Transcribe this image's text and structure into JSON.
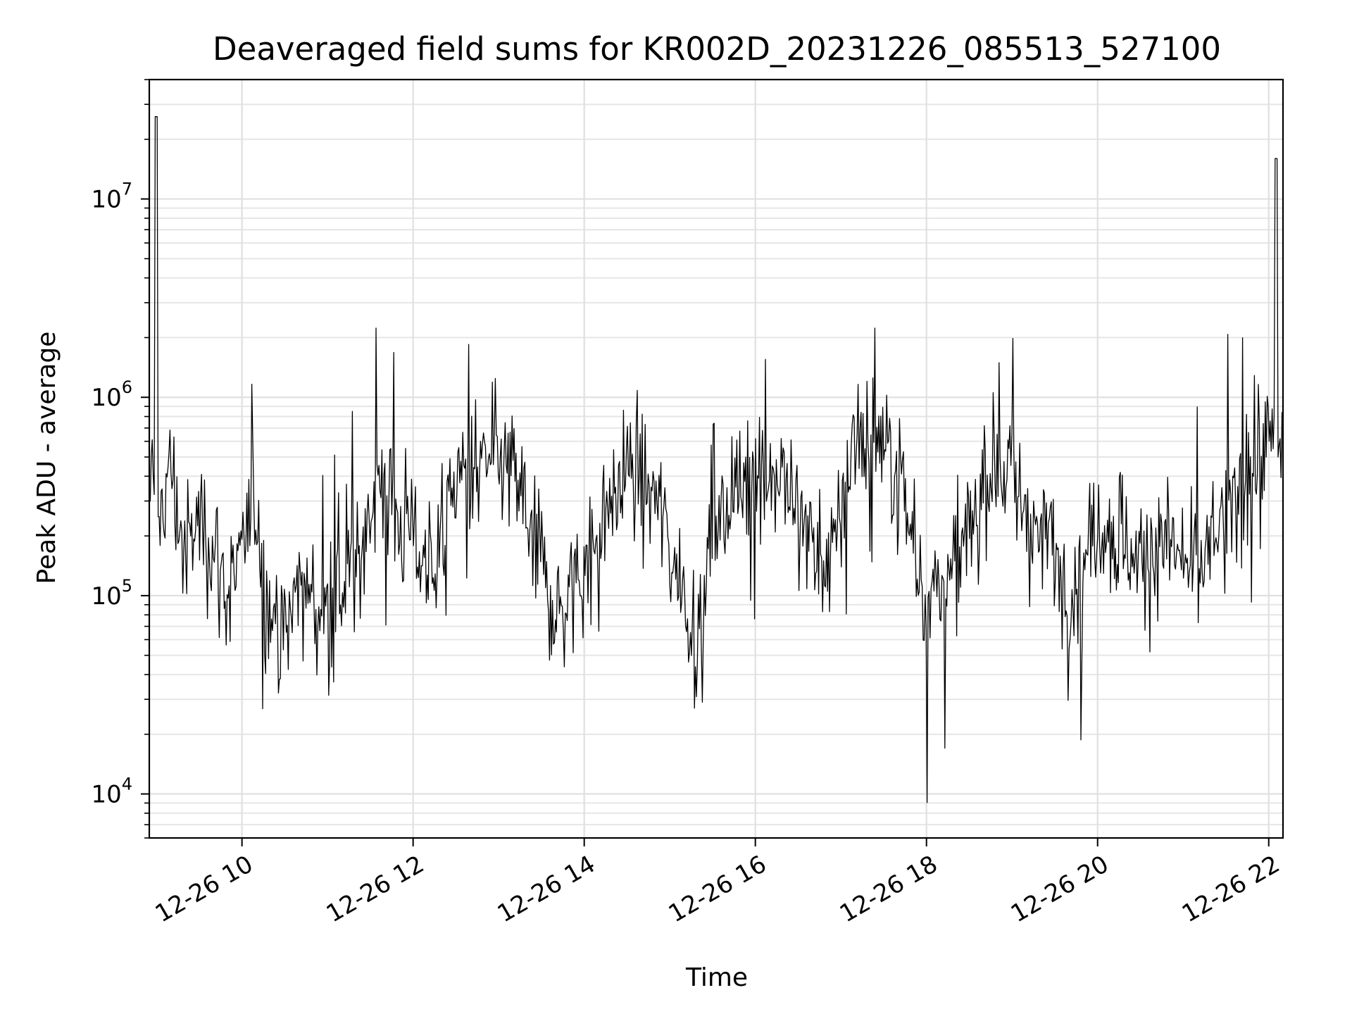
{
  "chart_data": {
    "type": "line",
    "title": "Deaveraged field sums for KR002D_20231226_085513_527100",
    "xlabel": "Time",
    "ylabel": "Peak ADU - average",
    "yscale": "log",
    "grid": true,
    "legend": "none",
    "xlim": [
      "2023-12-26 08:55",
      "2023-12-26 22:10"
    ],
    "ylim": [
      6000,
      40000000
    ],
    "xticks": [
      {
        "value": "2023-12-26 10:00",
        "label": "12-26 10"
      },
      {
        "value": "2023-12-26 12:00",
        "label": "12-26 12"
      },
      {
        "value": "2023-12-26 14:00",
        "label": "12-26 14"
      },
      {
        "value": "2023-12-26 16:00",
        "label": "12-26 16"
      },
      {
        "value": "2023-12-26 18:00",
        "label": "12-26 18"
      },
      {
        "value": "2023-12-26 20:00",
        "label": "12-26 20"
      },
      {
        "value": "2023-12-26 22:00",
        "label": "12-26 22"
      }
    ],
    "yticks": [
      {
        "value": 10000,
        "base": "10",
        "exp": "4"
      },
      {
        "value": 100000,
        "base": "10",
        "exp": "5"
      },
      {
        "value": 1000000,
        "base": "10",
        "exp": "6"
      },
      {
        "value": 10000000,
        "base": "10",
        "exp": "7"
      }
    ],
    "series": [
      {
        "color": "#000000",
        "points": [
          [
            "2023-12-26 08:55",
            300000
          ],
          [
            "2023-12-26 09:00",
            26000000
          ],
          [
            "2023-12-26 09:02",
            250000
          ],
          [
            "2023-12-26 09:10",
            450000
          ],
          [
            "2023-12-26 09:20",
            150000
          ],
          [
            "2023-12-26 09:30",
            250000
          ],
          [
            "2023-12-26 09:40",
            180000
          ],
          [
            "2023-12-26 09:50",
            100000
          ],
          [
            "2023-12-26 10:00",
            150000
          ],
          [
            "2023-12-26 10:10",
            300000
          ],
          [
            "2023-12-26 10:20",
            70000
          ],
          [
            "2023-12-26 10:30",
            60000
          ],
          [
            "2023-12-26 10:40",
            120000
          ],
          [
            "2023-12-26 10:50",
            90000
          ],
          [
            "2023-12-26 11:00",
            80000
          ],
          [
            "2023-12-26 11:10",
            110000
          ],
          [
            "2023-12-26 11:20",
            120000
          ],
          [
            "2023-12-26 11:30",
            300000
          ],
          [
            "2023-12-26 11:40",
            350000
          ],
          [
            "2023-12-26 11:50",
            250000
          ],
          [
            "2023-12-26 12:00",
            200000
          ],
          [
            "2023-12-26 12:10",
            150000
          ],
          [
            "2023-12-26 12:20",
            200000
          ],
          [
            "2023-12-26 12:30",
            400000
          ],
          [
            "2023-12-26 12:45",
            400000
          ],
          [
            "2023-12-26 13:00",
            500000
          ],
          [
            "2023-12-26 13:15",
            350000
          ],
          [
            "2023-12-26 13:30",
            150000
          ],
          [
            "2023-12-26 13:40",
            80000
          ],
          [
            "2023-12-26 13:50",
            100000
          ],
          [
            "2023-12-26 14:00",
            150000
          ],
          [
            "2023-12-26 14:15",
            250000
          ],
          [
            "2023-12-26 14:30",
            450000
          ],
          [
            "2023-12-26 14:45",
            350000
          ],
          [
            "2023-12-26 15:00",
            200000
          ],
          [
            "2023-12-26 15:10",
            100000
          ],
          [
            "2023-12-26 15:20",
            60000
          ],
          [
            "2023-12-26 15:30",
            250000
          ],
          [
            "2023-12-26 15:45",
            300000
          ],
          [
            "2023-12-26 16:00",
            500000
          ],
          [
            "2023-12-26 16:15",
            400000
          ],
          [
            "2023-12-26 16:30",
            300000
          ],
          [
            "2023-12-26 16:45",
            150000
          ],
          [
            "2023-12-26 16:55",
            150000
          ],
          [
            "2023-12-26 17:10",
            700000
          ],
          [
            "2023-12-26 17:25",
            600000
          ],
          [
            "2023-12-26 17:40",
            450000
          ],
          [
            "2023-12-26 17:50",
            200000
          ],
          [
            "2023-12-26 18:00",
            90000
          ],
          [
            "2023-12-26 18:10",
            110000
          ],
          [
            "2023-12-26 18:25",
            150000
          ],
          [
            "2023-12-26 18:40",
            400000
          ],
          [
            "2023-12-26 18:50",
            500000
          ],
          [
            "2023-12-26 19:00",
            400000
          ],
          [
            "2023-12-26 19:10",
            250000
          ],
          [
            "2023-12-26 19:25",
            200000
          ],
          [
            "2023-12-26 19:40",
            100000
          ],
          [
            "2023-12-26 19:50",
            150000
          ],
          [
            "2023-12-26 20:00",
            250000
          ],
          [
            "2023-12-26 20:15",
            200000
          ],
          [
            "2023-12-26 20:30",
            150000
          ],
          [
            "2023-12-26 20:45",
            200000
          ],
          [
            "2023-12-26 21:00",
            150000
          ],
          [
            "2023-12-26 21:10",
            120000
          ],
          [
            "2023-12-26 21:20",
            200000
          ],
          [
            "2023-12-26 21:35",
            250000
          ],
          [
            "2023-12-26 21:50",
            550000
          ],
          [
            "2023-12-26 22:00",
            600000
          ],
          [
            "2023-12-26 22:05",
            16000000
          ],
          [
            "2023-12-26 22:07",
            500000
          ],
          [
            "2023-12-26 22:10",
            700000
          ]
        ]
      }
    ]
  }
}
